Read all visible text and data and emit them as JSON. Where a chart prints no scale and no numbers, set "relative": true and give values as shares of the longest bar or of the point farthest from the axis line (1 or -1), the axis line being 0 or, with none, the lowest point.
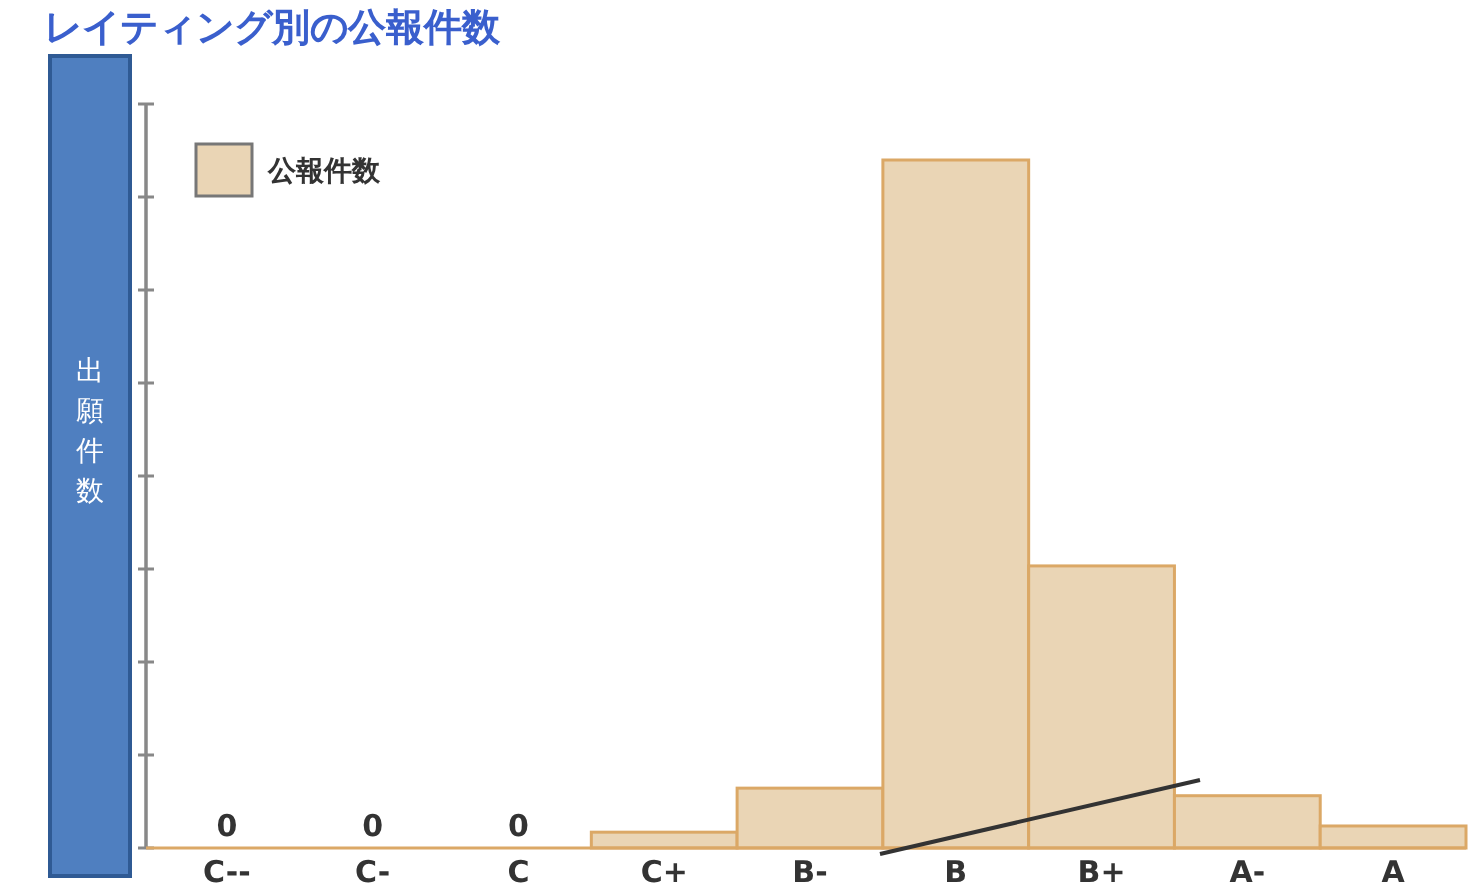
{
  "chart_data": {
    "type": "bar",
    "title": "レイティング別の公報件数",
    "ylabel": "出願件数",
    "relative": true,
    "categories": [
      "C--",
      "C-",
      "C",
      "C+",
      "B-",
      "B",
      "B+",
      "A-",
      "A"
    ],
    "series": [
      {
        "name": "公報件数",
        "color": "#ead5b5",
        "values": [
          0,
          0,
          0,
          0.023,
          0.087,
          1,
          0.41,
          0.076,
          0.032
        ]
      }
    ],
    "value_labels": [
      "0",
      "0",
      "0",
      null,
      null,
      null,
      null,
      null,
      null
    ],
    "legend": "top left",
    "grid": false
  }
}
